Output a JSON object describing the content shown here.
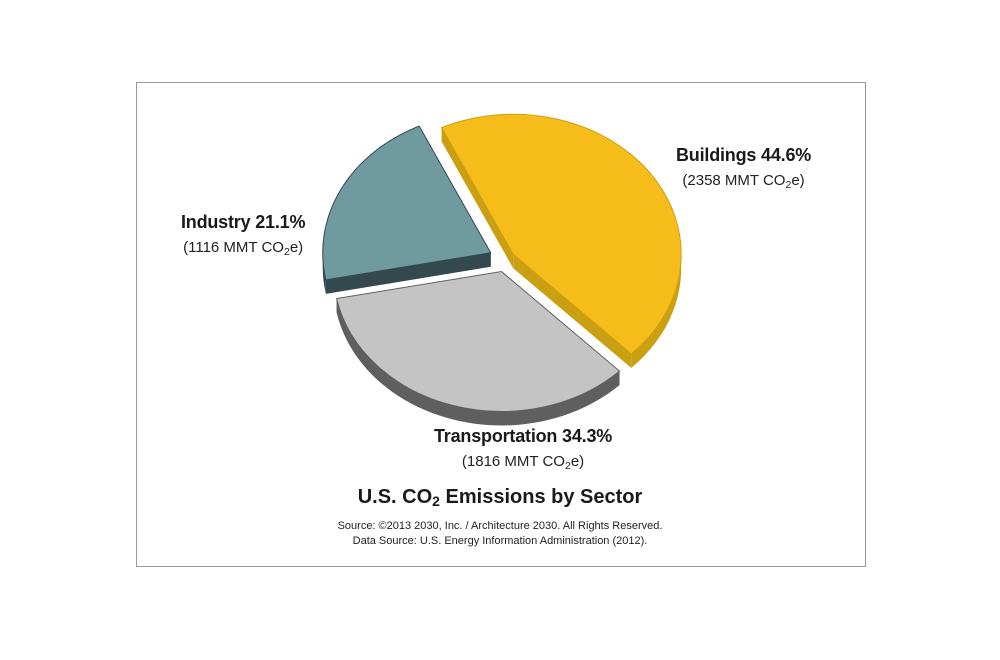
{
  "chart_data": {
    "type": "pie",
    "title_parts": [
      "U.S. CO",
      "2",
      " Emissions by Sector"
    ],
    "slices": [
      {
        "label": "Buildings",
        "percent": 44.6,
        "percent_text": "44.6%",
        "value": 2358,
        "value_parts": [
          "(2358 MMT CO",
          "2",
          "e)"
        ],
        "color": "#f6bd1a",
        "side_color": "#caa012"
      },
      {
        "label": "Transportation",
        "percent": 34.3,
        "percent_text": "34.3%",
        "value": 1816,
        "value_parts": [
          "(1816 MMT CO",
          "2",
          "e)"
        ],
        "color": "#c4c4c4",
        "side_color": "#5f5f5f"
      },
      {
        "label": "Industry",
        "percent": 21.1,
        "percent_text": "21.1%",
        "value": 1116,
        "value_parts": [
          "(1116 MMT CO",
          "2",
          "e)"
        ],
        "color": "#6f9aa0",
        "side_color": "#33494d"
      }
    ],
    "units": "MMT CO2e",
    "exploded": true,
    "legend": "none"
  },
  "source_lines": [
    "Source: ©2013 2030, Inc. / Architecture 2030. All Rights Reserved.",
    "Data Source: U.S. Energy Information Administration (2012)."
  ]
}
